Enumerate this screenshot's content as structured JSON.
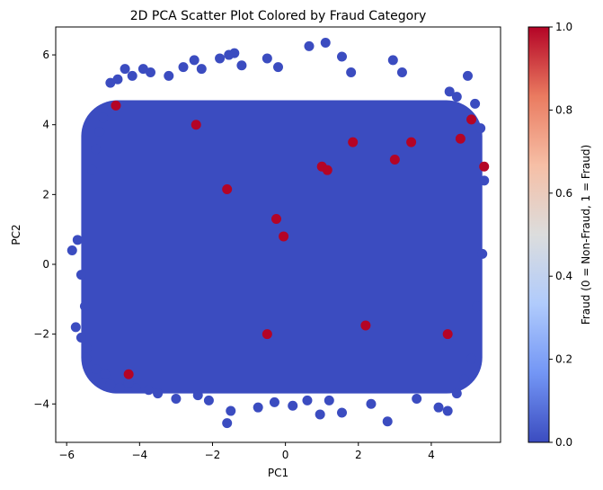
{
  "chart_data": {
    "type": "scatter",
    "title": "2D PCA Scatter Plot Colored by Fraud Category",
    "xlabel": "PC1",
    "ylabel": "PC2",
    "xlim": [
      -6.3,
      5.9
    ],
    "ylim": [
      -5.1,
      6.8
    ],
    "xticks": [
      -6,
      -4,
      -2,
      0,
      2,
      4
    ],
    "yticks": [
      -4,
      -2,
      0,
      2,
      4,
      6
    ],
    "xtick_labels": [
      "−6",
      "−4",
      "−2",
      "0",
      "2",
      "4"
    ],
    "ytick_labels": [
      "−4",
      "−2",
      "0",
      "2",
      "4",
      "6"
    ],
    "colormap": "coolwarm",
    "colorbar": {
      "label": "Fraud (0 = Non-Fraud, 1 = Fraud)",
      "range": [
        0,
        1
      ],
      "ticks": [
        0.0,
        0.2,
        0.4,
        0.6,
        0.8,
        1.0
      ],
      "tick_labels": [
        "0.0",
        "0.2",
        "0.4",
        "0.6",
        "0.8",
        "1.0"
      ],
      "colors": [
        "#3b4cc0",
        "#7396f5",
        "#b0cbfc",
        "#dcdddd",
        "#f6bfa6",
        "#ea7b60",
        "#b40426"
      ]
    },
    "colors": {
      "non_fraud": "#3b4cc0",
      "fraud": "#b40426"
    },
    "dense_region": {
      "x": [
        -5.6,
        5.4
      ],
      "y": [
        -3.7,
        4.7
      ],
      "value": 0
    },
    "series": [
      {
        "name": "Non-Fraud",
        "value": 0,
        "x": [
          -5.85,
          -5.7,
          -5.6,
          -5.5,
          -5.75,
          -5.45,
          -5.3,
          -5.2,
          -5.1,
          -5.0,
          -4.8,
          -4.6,
          -4.4,
          -4.2,
          -3.9,
          -3.7,
          -3.2,
          -2.8,
          -2.5,
          -2.3,
          -1.8,
          -1.55,
          -1.4,
          -1.2,
          -0.5,
          -0.2,
          0.65,
          1.1,
          1.55,
          1.8,
          2.95,
          3.2,
          4.5,
          4.7,
          5.0,
          5.2,
          5.35,
          5.45,
          5.4,
          5.25,
          5.1,
          4.9,
          4.7,
          4.45,
          4.2,
          3.6,
          2.8,
          2.35,
          1.55,
          1.2,
          0.95,
          0.6,
          0.2,
          -0.3,
          -0.75,
          -1.5,
          -1.6,
          -2.1,
          -2.4,
          -3.0,
          -3.5,
          -3.75,
          -4.1,
          -4.3,
          -4.55,
          -4.8,
          -4.95,
          -5.2,
          -5.45,
          -5.6
        ],
        "y": [
          0.4,
          0.7,
          -0.3,
          -1.2,
          -1.8,
          -2.4,
          2.7,
          3.3,
          3.8,
          4.2,
          5.2,
          5.3,
          5.6,
          5.4,
          5.6,
          5.5,
          5.4,
          5.65,
          5.85,
          5.6,
          5.9,
          6.0,
          6.05,
          5.7,
          5.9,
          5.65,
          6.25,
          6.35,
          5.95,
          5.5,
          5.85,
          5.5,
          4.95,
          4.8,
          5.4,
          4.6,
          3.9,
          2.4,
          0.3,
          -1.2,
          -2.7,
          -3.3,
          -3.7,
          -4.2,
          -4.1,
          -3.85,
          -4.5,
          -4.0,
          -4.25,
          -3.9,
          -4.3,
          -3.9,
          -4.05,
          -3.95,
          -4.1,
          -4.2,
          -4.55,
          -3.9,
          -3.75,
          -3.85,
          -3.7,
          -3.6,
          -3.55,
          -3.4,
          -3.55,
          -3.45,
          -3.15,
          -3.0,
          -2.7,
          -2.1
        ]
      },
      {
        "name": "Fraud",
        "value": 1,
        "x": [
          -4.65,
          -2.45,
          -1.6,
          -0.25,
          -0.05,
          1.0,
          1.15,
          1.85,
          3.0,
          3.45,
          5.1,
          -0.5,
          2.2,
          4.45,
          -4.3,
          5.45,
          4.8
        ],
        "y": [
          4.55,
          4.0,
          2.15,
          1.3,
          0.8,
          2.8,
          2.7,
          3.5,
          3.0,
          3.5,
          4.15,
          -2.0,
          -1.75,
          -2.0,
          -3.15,
          2.8,
          3.6
        ]
      }
    ]
  }
}
